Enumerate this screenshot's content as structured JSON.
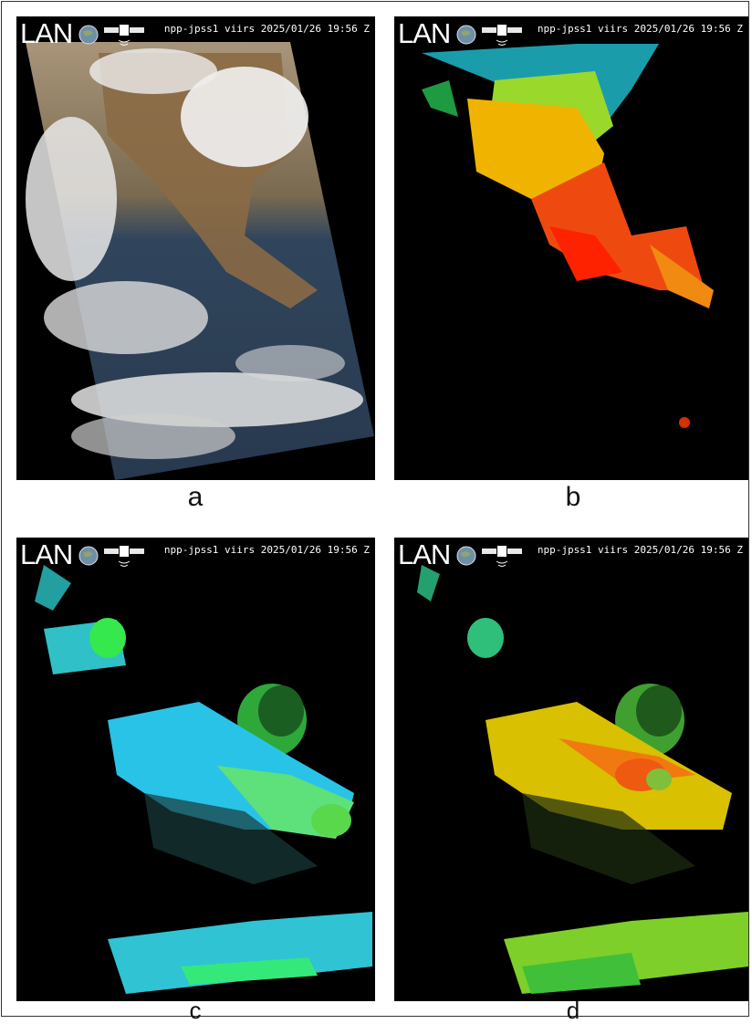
{
  "panels": [
    {
      "id": "a",
      "caption": "a",
      "logo": "LAN",
      "stamp": "npp-jpss1 viirs 2025/01/26 19:56 Z",
      "product": "true-color"
    },
    {
      "id": "b",
      "caption": "b",
      "logo": "LAN",
      "stamp": "npp-jpss1 viirs 2025/01/26 19:56 Z",
      "product": "land-temperature-colormap"
    },
    {
      "id": "c",
      "caption": "c",
      "logo": "LAN",
      "stamp": "npp-jpss1 viirs 2025/01/26 19:56 Z",
      "product": "ocean-colormap-blue-green"
    },
    {
      "id": "d",
      "caption": "d",
      "logo": "LAN",
      "stamp": "npp-jpss1 viirs 2025/01/26 19:56 Z",
      "product": "ocean-colormap-green-orange"
    }
  ],
  "icons": [
    "globe-icon",
    "satellite-icon"
  ]
}
